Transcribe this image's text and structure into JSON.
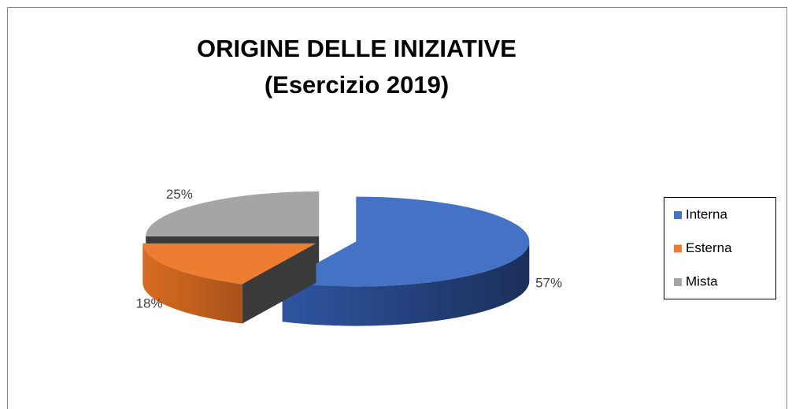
{
  "chart_data": {
    "type": "pie3d",
    "title": "ORIGINE DELLE INIZIATIVE",
    "subtitle": "(Esercizio 2019)",
    "categories": [
      "Interna",
      "Esterna",
      "Mista"
    ],
    "values": [
      57,
      18,
      25
    ],
    "value_labels": [
      "57%",
      "18%",
      "25%"
    ],
    "colors": [
      "#4472c4",
      "#ed7d31",
      "#a5a5a5"
    ],
    "legend": "right"
  }
}
